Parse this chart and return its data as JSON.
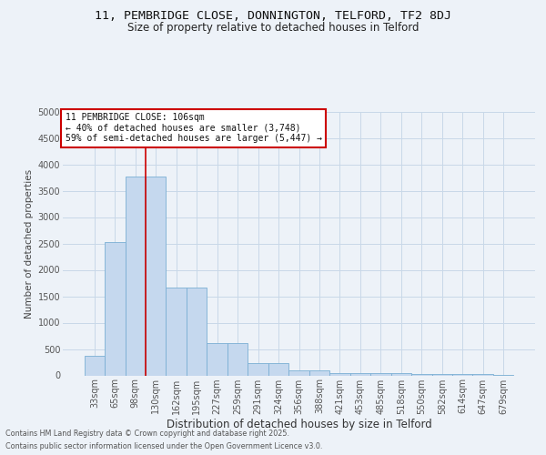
{
  "title1": "11, PEMBRIDGE CLOSE, DONNINGTON, TELFORD, TF2 8DJ",
  "title2": "Size of property relative to detached houses in Telford",
  "xlabel": "Distribution of detached houses by size in Telford",
  "ylabel": "Number of detached properties",
  "bar_color": "#c5d8ee",
  "bar_edge_color": "#7aafd4",
  "categories": [
    "33sqm",
    "65sqm",
    "98sqm",
    "130sqm",
    "162sqm",
    "195sqm",
    "227sqm",
    "259sqm",
    "291sqm",
    "324sqm",
    "356sqm",
    "388sqm",
    "421sqm",
    "453sqm",
    "485sqm",
    "518sqm",
    "550sqm",
    "582sqm",
    "614sqm",
    "647sqm",
    "679sqm"
  ],
  "values": [
    370,
    2530,
    3760,
    3760,
    1660,
    1660,
    610,
    610,
    230,
    230,
    100,
    100,
    50,
    50,
    40,
    40,
    30,
    30,
    20,
    20,
    10
  ],
  "ylim": [
    0,
    5000
  ],
  "yticks": [
    0,
    500,
    1000,
    1500,
    2000,
    2500,
    3000,
    3500,
    4000,
    4500,
    5000
  ],
  "vline_x": 2.5,
  "annotation_text": "11 PEMBRIDGE CLOSE: 106sqm\n← 40% of detached houses are smaller (3,748)\n59% of semi-detached houses are larger (5,447) →",
  "annotation_box_color": "#ffffff",
  "annotation_box_edge": "#cc0000",
  "vline_color": "#cc0000",
  "grid_color": "#c8d8e8",
  "bg_color": "#edf2f8",
  "footer1": "Contains HM Land Registry data © Crown copyright and database right 2025.",
  "footer2": "Contains public sector information licensed under the Open Government Licence v3.0.",
  "title1_fontsize": 9.5,
  "title2_fontsize": 8.5,
  "ylabel_fontsize": 7.5,
  "xlabel_fontsize": 8.5,
  "tick_fontsize": 7,
  "footer_fontsize": 5.8,
  "annot_fontsize": 7
}
